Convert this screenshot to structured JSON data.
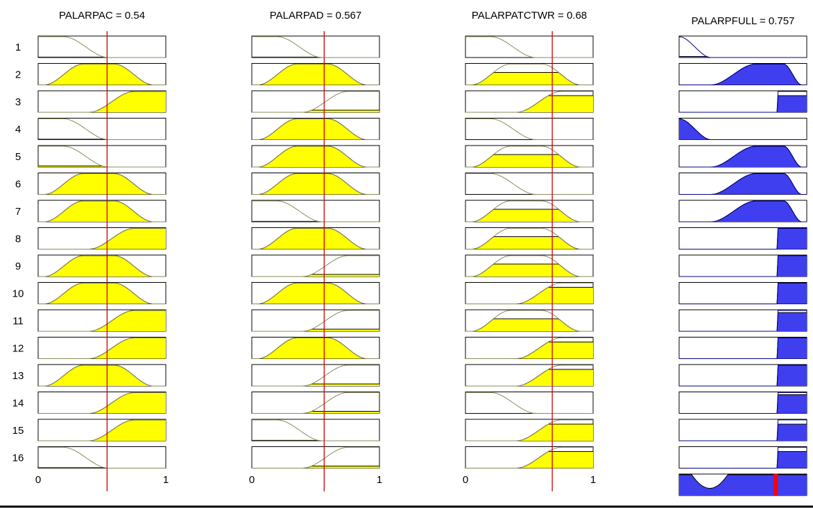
{
  "colors": {
    "input_fill": "#ffff00",
    "output_fill": "#3f3ff0",
    "input_curve": "#8a8a5a",
    "output_curve": "#000080",
    "marker_line": "#cc0000",
    "aggregate_marker": "#ff0000",
    "frame": "#000000"
  },
  "chart_data": {
    "type": "fuzzy-rule-viewer",
    "rule_labels": [
      "1",
      "2",
      "3",
      "4",
      "5",
      "6",
      "7",
      "8",
      "9",
      "10",
      "11",
      "12",
      "13",
      "14",
      "15",
      "16"
    ],
    "axis_ticks": [
      "0",
      "1"
    ],
    "inputs": [
      {
        "title": "PALARPAC = 0.54",
        "value": 0.54,
        "xlim": [
          0,
          1
        ],
        "mf_types": [
          "low",
          "mid",
          "high",
          "low",
          "low",
          "mid",
          "mid",
          "high",
          "mid",
          "mid",
          "high",
          "high",
          "mid",
          "high",
          "high",
          "low"
        ],
        "firing": [
          0.02,
          1.0,
          1.0,
          0.02,
          0.05,
          1.0,
          1.0,
          1.0,
          1.0,
          1.0,
          1.0,
          1.0,
          1.0,
          1.0,
          1.0,
          0.02
        ]
      },
      {
        "title": "PALARPAD = 0.567",
        "value": 0.567,
        "xlim": [
          0,
          1
        ],
        "mf_types": [
          "low",
          "mid",
          "high",
          "mid",
          "mid",
          "mid",
          "low",
          "mid",
          "high",
          "mid",
          "high",
          "mid",
          "high",
          "high",
          "low",
          "high"
        ],
        "firing": [
          0.02,
          1.0,
          0.1,
          1.0,
          1.0,
          1.0,
          0.02,
          1.0,
          0.1,
          1.0,
          0.1,
          1.0,
          0.1,
          0.1,
          0.02,
          0.1
        ]
      },
      {
        "title": "PALARPATCTWR = 0.68",
        "value": 0.68,
        "xlim": [
          0,
          1
        ],
        "mf_types": [
          "low",
          "mid",
          "high",
          "low",
          "mid",
          "low",
          "mid",
          "mid",
          "mid",
          "high",
          "mid",
          "high",
          "high",
          "low",
          "high",
          "high"
        ],
        "firing": [
          0.0,
          0.6,
          0.8,
          0.0,
          0.6,
          0.0,
          0.6,
          0.6,
          0.6,
          0.8,
          0.6,
          0.8,
          0.8,
          0.0,
          0.8,
          0.8
        ]
      }
    ],
    "output": {
      "title": "PALARPFULL = 0.757",
      "value": 0.757,
      "xlim": [
        0,
        1
      ],
      "mf_types": [
        "verylow",
        "midhigh",
        "veryhigh",
        "verylow",
        "midhigh",
        "midhigh",
        "midhigh",
        "veryhigh",
        "veryhigh",
        "veryhigh",
        "veryhigh",
        "veryhigh",
        "veryhigh",
        "veryhigh",
        "veryhigh",
        "veryhigh"
      ],
      "firing": [
        0.05,
        1.0,
        0.8,
        1.0,
        1.0,
        1.0,
        1.0,
        1.0,
        1.0,
        1.0,
        0.9,
        1.0,
        1.0,
        0.9,
        0.8,
        0.8
      ]
    }
  }
}
